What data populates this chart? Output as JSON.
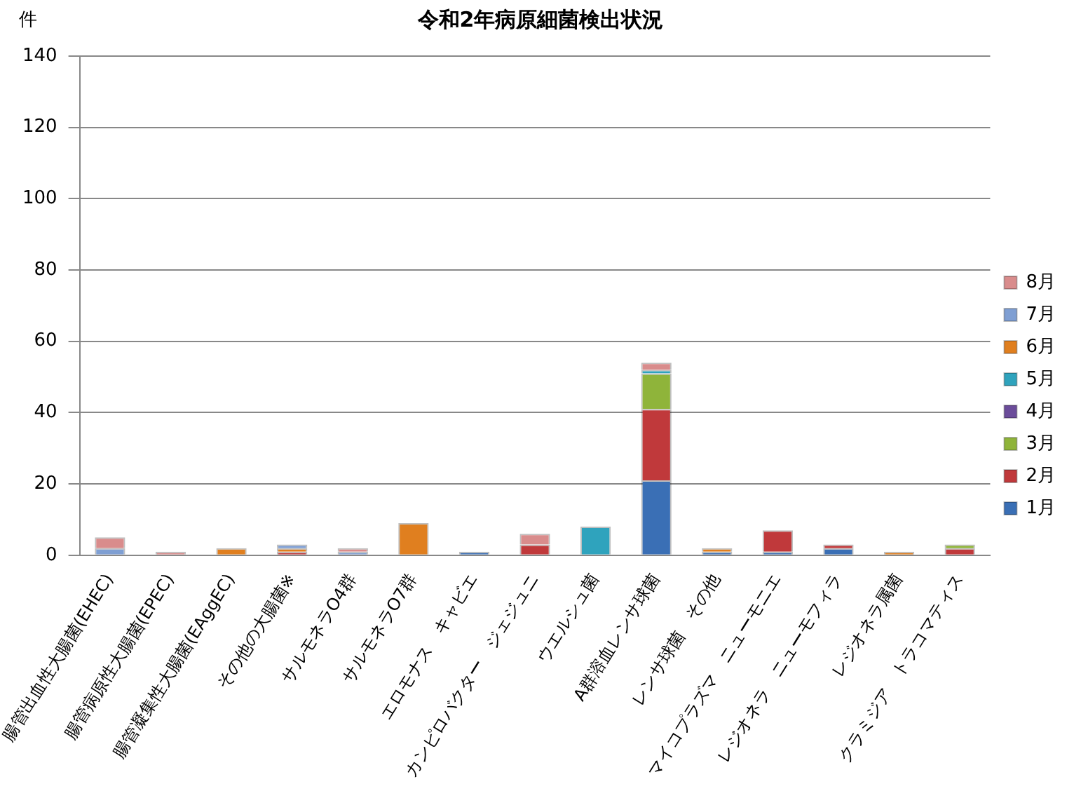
{
  "chart_data": {
    "type": "bar",
    "title": "令和2年病原細菌検出状況",
    "ylabel": "件",
    "categories": [
      "腸管出血性大腸菌(EHEC)",
      "腸管病原性大腸菌(EPEC)",
      "腸管凝集性大腸菌(EAggEC)",
      "その他の大腸菌※",
      "サルモネラO4群",
      "サルモネラO7群",
      "エロモナス　キャビエ",
      "カンピロバクター　ジェジュニ",
      "ウエルシュ菌",
      "A群溶血レンサ球菌",
      "レンサ球菌　その他",
      "マイコプラズマ　ニューモニエ",
      "レジオネラ　ニューモフィラ",
      "レジオネラ属菌",
      "クラミジア　トラコマティス"
    ],
    "stacked": true,
    "series": [
      {
        "name": "1月",
        "color": "#3a6fb5",
        "values": [
          0,
          0,
          0,
          0,
          0,
          0,
          1,
          0,
          0,
          21,
          1,
          1,
          2,
          0,
          0
        ]
      },
      {
        "name": "2月",
        "color": "#c0393b",
        "values": [
          0,
          0,
          0,
          1,
          0,
          0,
          0,
          3,
          0,
          20,
          0,
          6,
          1,
          0,
          2
        ]
      },
      {
        "name": "3月",
        "color": "#8fb43a",
        "values": [
          0,
          0,
          0,
          0,
          0,
          0,
          0,
          0,
          0,
          10,
          0,
          0,
          0,
          0,
          1
        ]
      },
      {
        "name": "4月",
        "color": "#6b4c9a",
        "values": [
          0,
          0,
          0,
          0,
          0,
          0,
          0,
          0,
          0,
          0,
          0,
          0,
          0,
          0,
          0
        ]
      },
      {
        "name": "5月",
        "color": "#2fa3bd",
        "values": [
          0,
          0,
          0,
          0,
          0,
          0,
          0,
          0,
          8,
          1,
          0,
          0,
          0,
          0,
          0
        ]
      },
      {
        "name": "6月",
        "color": "#e07f1f",
        "values": [
          0,
          0,
          2,
          1,
          0,
          9,
          0,
          0,
          0,
          0,
          1,
          0,
          0,
          1,
          0
        ]
      },
      {
        "name": "7月",
        "color": "#7f9fd3",
        "values": [
          2,
          0,
          0,
          1,
          1,
          0,
          0,
          0,
          0,
          0,
          0,
          0,
          0,
          0,
          0
        ]
      },
      {
        "name": "8月",
        "color": "#d98c8c",
        "values": [
          3,
          1,
          0,
          0,
          1,
          0,
          0,
          3,
          0,
          2,
          0,
          0,
          0,
          0,
          0
        ]
      }
    ],
    "ylim": [
      0,
      140
    ],
    "yticks": [
      0,
      20,
      40,
      60,
      80,
      100,
      120,
      140
    ],
    "grid": "y",
    "legend": "right"
  }
}
